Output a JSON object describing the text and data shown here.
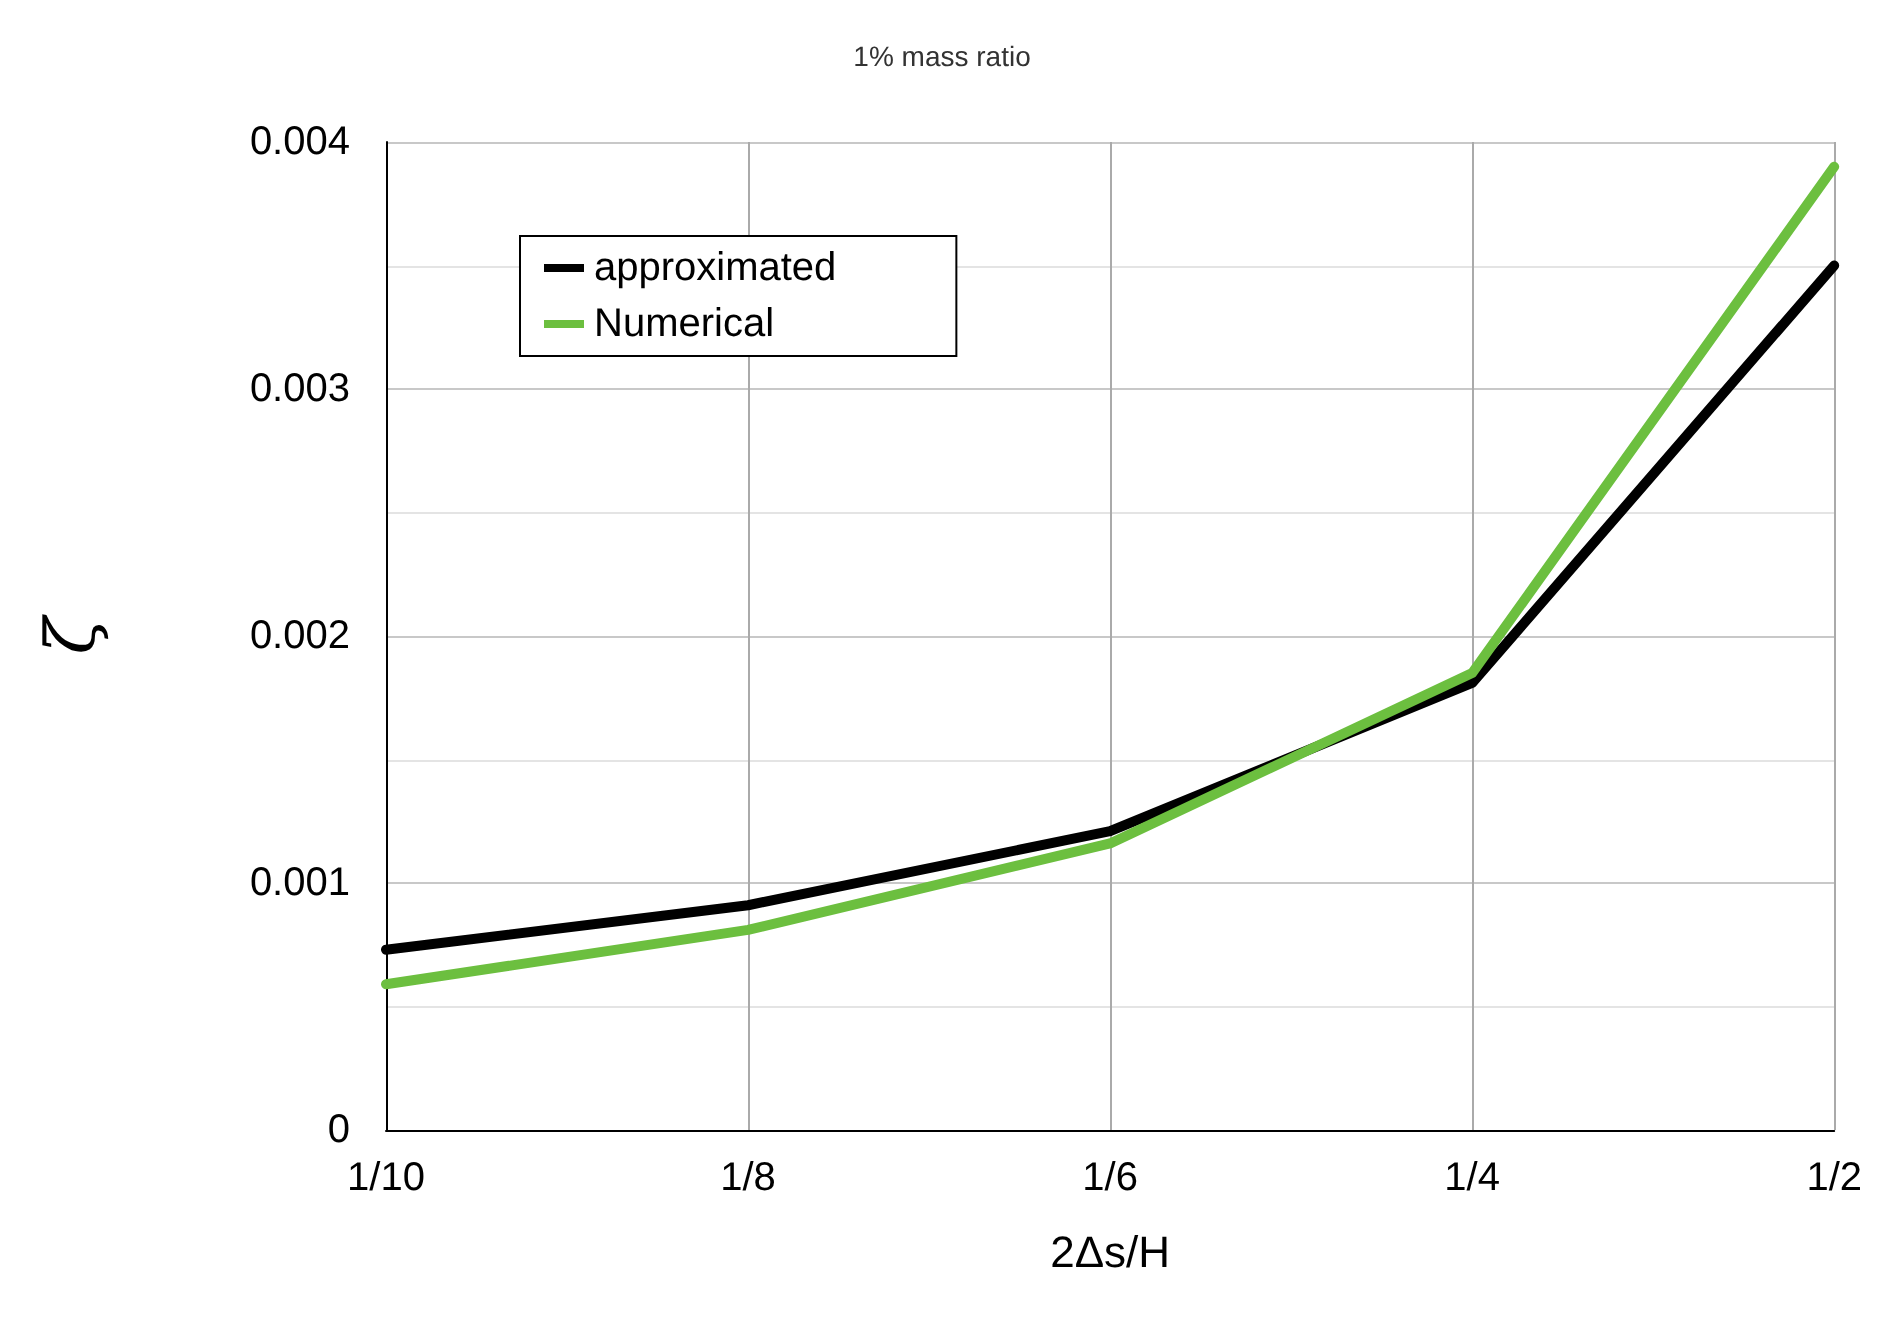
{
  "chart_data": {
    "type": "line",
    "title": "1% mass ratio",
    "xlabel": "2Δs/H",
    "ylabel": "ζ",
    "categories": [
      "1/10",
      "1/8",
      "1/6",
      "1/4",
      "1/2"
    ],
    "series": [
      {
        "name": "approximated",
        "color": "#000000",
        "values": [
          0.00073,
          0.00091,
          0.00121,
          0.00181,
          0.0035
        ]
      },
      {
        "name": "Numerical",
        "color": "#6cbf3f",
        "values": [
          0.00059,
          0.00081,
          0.00116,
          0.00185,
          0.0039
        ]
      }
    ],
    "ylim": [
      0,
      0.004
    ],
    "yticks": [
      0,
      {
        "value": 0.0005,
        "label": null
      },
      0.001,
      {
        "value": 0.0015,
        "label": null
      },
      0.002,
      {
        "value": 0.0025,
        "label": null
      },
      0.003,
      {
        "value": 0.0035,
        "label": null
      },
      0.004
    ],
    "grid": true,
    "legend": "top left",
    "marker": "none",
    "line_style": "solid"
  }
}
